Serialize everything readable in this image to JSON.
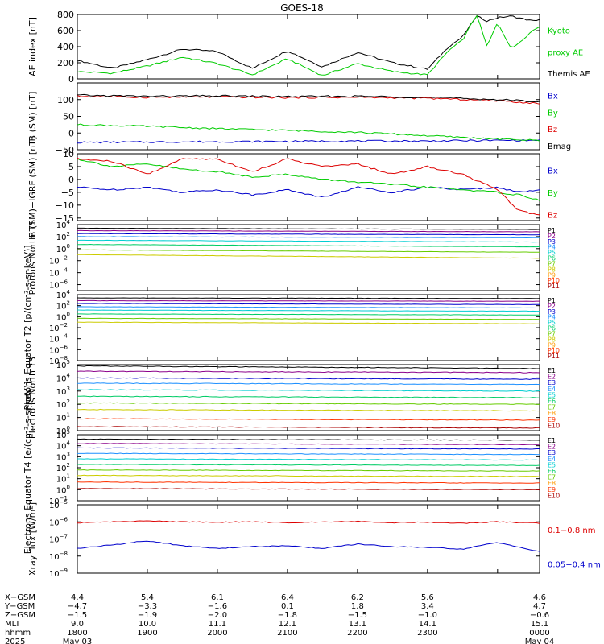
{
  "title": "GOES-18",
  "colors": {
    "black": "#000000",
    "green": "#00cc00",
    "red": "#dd0000",
    "blue": "#0000cc",
    "orange": "#ff8800",
    "channel_palette": [
      "#000000",
      "#8b008b",
      "#0000cc",
      "#1e90ff",
      "#00ced1",
      "#00cc66",
      "#66cc00",
      "#cccc00",
      "#ff9900",
      "#ff3300",
      "#aa0000"
    ]
  },
  "chart_data": [
    {
      "id": "ae",
      "type": "line",
      "ylabel": "AE index [nT]",
      "ylim": [
        0,
        800
      ],
      "log": false,
      "yticks": [
        0,
        200,
        400,
        600,
        800
      ],
      "tick_labels": [
        "0",
        "200",
        "400",
        "600",
        "800"
      ],
      "x_hours": [
        0,
        0.5,
        1,
        1.5,
        2,
        2.5,
        3,
        3.5,
        4,
        4.5,
        5,
        5.3,
        5.5,
        5.7,
        5.85,
        6.0,
        6.2,
        6.5,
        6.6
      ],
      "series": [
        {
          "name": "Themis AE",
          "label_color": "black",
          "color": "black",
          "values": [
            230,
            130,
            240,
            370,
            340,
            130,
            350,
            150,
            330,
            200,
            120,
            400,
            520,
            780,
            720,
            760,
            780,
            720,
            740
          ]
        },
        {
          "name": "Kyoto proxy AE",
          "label_color": "green",
          "color": "green",
          "values": [
            90,
            70,
            160,
            270,
            190,
            50,
            250,
            40,
            190,
            90,
            50,
            350,
            480,
            800,
            400,
            700,
            370,
            600,
            650
          ]
        }
      ],
      "legend": [
        {
          "text": "Kyoto",
          "color": "green"
        },
        {
          "text": "proxy AE",
          "color": "green"
        },
        {
          "text": "Themis AE",
          "color": "black"
        }
      ]
    },
    {
      "id": "bsm",
      "type": "line",
      "ylabel": "B (SM) [nT]",
      "ylim": [
        -50,
        150
      ],
      "log": false,
      "yticks": [
        -50,
        0,
        50,
        100
      ],
      "tick_labels": [
        "−50",
        "0",
        "50",
        "100"
      ],
      "x_hours": [
        0,
        1,
        2,
        3,
        4,
        5,
        6,
        6.6
      ],
      "series": [
        {
          "name": "Bx",
          "color": "blue",
          "values": [
            -28,
            -27,
            -26,
            -25,
            -24,
            -24,
            -22,
            -22
          ]
        },
        {
          "name": "By",
          "color": "green",
          "values": [
            25,
            20,
            13,
            8,
            2,
            -8,
            -18,
            -22
          ]
        },
        {
          "name": "Bz",
          "color": "red",
          "values": [
            110,
            107,
            108,
            106,
            107,
            104,
            97,
            88
          ]
        },
        {
          "name": "Bmag",
          "color": "black",
          "values": [
            113,
            110,
            111,
            109,
            110,
            107,
            100,
            94
          ]
        }
      ],
      "legend": [
        {
          "text": "Bx",
          "color": "blue"
        },
        {
          "text": "By",
          "color": "green"
        },
        {
          "text": "Bz",
          "color": "red"
        },
        {
          "text": "Bmag",
          "color": "black"
        }
      ]
    },
    {
      "id": "bdiff",
      "type": "line",
      "ylabel": "B (SM)−IGRF (SM) [nT]",
      "ylim": [
        -16,
        10
      ],
      "log": false,
      "yticks": [
        -15,
        -10,
        -5,
        0,
        5,
        10
      ],
      "tick_labels": [
        "−15",
        "−10",
        "−5",
        "0",
        "5",
        "10"
      ],
      "x_hours": [
        0,
        0.5,
        1,
        1.5,
        2,
        2.5,
        3,
        3.5,
        4,
        4.5,
        5,
        5.5,
        6,
        6.3,
        6.6
      ],
      "series": [
        {
          "name": "Bx",
          "color": "blue",
          "values": [
            -3,
            -4,
            -3,
            -5,
            -4,
            -6,
            -4,
            -7,
            -3,
            -5,
            -3,
            -4,
            -3,
            -5,
            -4
          ]
        },
        {
          "name": "By",
          "color": "green",
          "values": [
            8,
            5,
            6,
            4,
            3,
            1,
            2,
            0,
            -1,
            -2,
            -3,
            -4,
            -5,
            -6,
            -8
          ]
        },
        {
          "name": "Bz",
          "color": "red",
          "values": [
            8,
            7,
            2,
            8,
            8,
            3,
            8,
            5,
            6,
            2,
            5,
            2,
            -4,
            -12,
            -14
          ]
        }
      ],
      "legend": [
        {
          "text": "Bx",
          "color": "blue"
        },
        {
          "text": "By",
          "color": "green"
        },
        {
          "text": "Bz",
          "color": "red"
        }
      ]
    },
    {
      "id": "protT1",
      "type": "line",
      "ylabel": "Protons North T1",
      "ylim": [
        -7,
        4
      ],
      "log": true,
      "yticks": [
        -6,
        -4,
        -2,
        0,
        2,
        4
      ],
      "tick_exponents": [
        "−6",
        "−4",
        "−2",
        "0",
        "2",
        "4"
      ],
      "x_hours": [
        0,
        6.6
      ],
      "series": [
        {
          "name": "P1",
          "color_index": 0,
          "values": [
            3.4,
            3.2
          ]
        },
        {
          "name": "P2",
          "color_index": 1,
          "values": [
            3.0,
            2.8
          ]
        },
        {
          "name": "P3",
          "color_index": 2,
          "values": [
            2.5,
            2.3
          ]
        },
        {
          "name": "P4",
          "color_index": 3,
          "values": [
            2.0,
            1.8
          ]
        },
        {
          "name": "P5",
          "color_index": 4,
          "values": [
            1.4,
            1.1
          ]
        },
        {
          "name": "P6",
          "color_index": 5,
          "values": [
            0.7,
            0.3
          ]
        },
        {
          "name": "P7",
          "color_index": 6,
          "values": [
            -0.2,
            -0.6
          ]
        },
        {
          "name": "P8",
          "color_index": 7,
          "values": [
            -1.0,
            -1.6
          ]
        }
      ],
      "legend": [
        {
          "text": "P1",
          "color_index": 0
        },
        {
          "text": "P2",
          "color_index": 1
        },
        {
          "text": "P3",
          "color_index": 2
        },
        {
          "text": "P4",
          "color_index": 3
        },
        {
          "text": "P5",
          "color_index": 4
        },
        {
          "text": "P6",
          "color_index": 5
        },
        {
          "text": "P7",
          "color_index": 6
        },
        {
          "text": "P8",
          "color_index": 7
        },
        {
          "text": "P9",
          "color_index": 8
        },
        {
          "text": "P10",
          "color_index": 9
        },
        {
          "text": "P11",
          "color_index": 10
        }
      ]
    },
    {
      "id": "protT2",
      "type": "line",
      "ylabel": "Protons Equator T2 [p/(cm²-s-sr-keV)]",
      "ylim": [
        -8,
        4
      ],
      "log": true,
      "yticks": [
        -8,
        -6,
        -4,
        -2,
        0,
        2,
        4
      ],
      "tick_exponents": [
        "−8",
        "−6",
        "−4",
        "−2",
        "0",
        "2",
        "4"
      ],
      "x_hours": [
        0,
        6.6
      ],
      "series": [
        {
          "name": "P1",
          "color_index": 0,
          "values": [
            3.4,
            3.3
          ]
        },
        {
          "name": "P2",
          "color_index": 1,
          "values": [
            2.9,
            2.8
          ]
        },
        {
          "name": "P3",
          "color_index": 2,
          "values": [
            2.4,
            2.2
          ]
        },
        {
          "name": "P4",
          "color_index": 3,
          "values": [
            1.8,
            1.6
          ]
        },
        {
          "name": "P5",
          "color_index": 4,
          "values": [
            1.2,
            1.0
          ]
        },
        {
          "name": "P6",
          "color_index": 5,
          "values": [
            0.5,
            0.3
          ]
        },
        {
          "name": "P7",
          "color_index": 6,
          "values": [
            -0.3,
            -0.5
          ]
        },
        {
          "name": "P8",
          "color_index": 7,
          "values": [
            -1.0,
            -1.3
          ]
        }
      ],
      "legend": [
        {
          "text": "P1",
          "color_index": 0
        },
        {
          "text": "P2",
          "color_index": 1
        },
        {
          "text": "P3",
          "color_index": 2
        },
        {
          "text": "P4",
          "color_index": 3
        },
        {
          "text": "P5",
          "color_index": 4
        },
        {
          "text": "P6",
          "color_index": 5
        },
        {
          "text": "P7",
          "color_index": 6
        },
        {
          "text": "P8",
          "color_index": 7
        },
        {
          "text": "P9",
          "color_index": 8
        },
        {
          "text": "P10",
          "color_index": 9
        },
        {
          "text": "P11",
          "color_index": 10
        }
      ]
    },
    {
      "id": "elecT3",
      "type": "line",
      "ylabel": "Electrons North T3",
      "ylim": [
        0,
        5
      ],
      "log": true,
      "yticks": [
        0,
        1,
        2,
        3,
        4,
        5
      ],
      "tick_exponents": [
        "0",
        "1",
        "2",
        "3",
        "4",
        "5"
      ],
      "x_hours": [
        0,
        6.6
      ],
      "series": [
        {
          "name": "E1",
          "color_index": 0,
          "values": [
            4.9,
            4.7
          ]
        },
        {
          "name": "E2",
          "color_index": 1,
          "values": [
            4.5,
            4.4
          ]
        },
        {
          "name": "E3",
          "color_index": 2,
          "values": [
            4.0,
            3.9
          ]
        },
        {
          "name": "E4",
          "color_index": 3,
          "values": [
            3.6,
            3.5
          ]
        },
        {
          "name": "E5",
          "color_index": 4,
          "values": [
            3.1,
            3.0
          ]
        },
        {
          "name": "E6",
          "color_index": 5,
          "values": [
            2.6,
            2.5
          ]
        },
        {
          "name": "E7",
          "color_index": 6,
          "values": [
            2.1,
            2.0
          ]
        },
        {
          "name": "E8",
          "color_index": 7,
          "values": [
            1.6,
            1.5
          ]
        },
        {
          "name": "E9",
          "color_index": 9,
          "values": [
            0.9,
            0.8
          ]
        },
        {
          "name": "E10",
          "color_index": 10,
          "values": [
            0.3,
            0.2
          ]
        }
      ],
      "legend": [
        {
          "text": "E1",
          "color_index": 0
        },
        {
          "text": "E2",
          "color_index": 1
        },
        {
          "text": "E3",
          "color_index": 2
        },
        {
          "text": "E4",
          "color_index": 3
        },
        {
          "text": "E5",
          "color_index": 4
        },
        {
          "text": "E6",
          "color_index": 5
        },
        {
          "text": "E7",
          "color_index": 6
        },
        {
          "text": "E8",
          "color_index": 8
        },
        {
          "text": "E9",
          "color_index": 9
        },
        {
          "text": "E10",
          "color_index": 10
        }
      ]
    },
    {
      "id": "elecT4",
      "type": "line",
      "ylabel": "Electrons Equator T4 [e/(cm²-s-sr-keV)]",
      "ylim": [
        -1,
        5
      ],
      "log": true,
      "yticks": [
        -1,
        0,
        1,
        2,
        3,
        4,
        5
      ],
      "tick_exponents": [
        "−1",
        "0",
        "1",
        "2",
        "3",
        "4",
        "5"
      ],
      "x_hours": [
        0,
        6.6
      ],
      "series": [
        {
          "name": "E1",
          "color_index": 0,
          "values": [
            4.6,
            4.5
          ]
        },
        {
          "name": "E2",
          "color_index": 1,
          "values": [
            4.2,
            4.1
          ]
        },
        {
          "name": "E3",
          "color_index": 2,
          "values": [
            3.8,
            3.7
          ]
        },
        {
          "name": "E4",
          "color_index": 3,
          "values": [
            3.3,
            3.2
          ]
        },
        {
          "name": "E5",
          "color_index": 4,
          "values": [
            2.8,
            2.7
          ]
        },
        {
          "name": "E6",
          "color_index": 5,
          "values": [
            2.3,
            2.2
          ]
        },
        {
          "name": "E7",
          "color_index": 6,
          "values": [
            1.8,
            1.7
          ]
        },
        {
          "name": "E8",
          "color_index": 7,
          "values": [
            1.3,
            1.2
          ]
        },
        {
          "name": "E9",
          "color_index": 9,
          "values": [
            0.7,
            0.6
          ]
        },
        {
          "name": "E10",
          "color_index": 10,
          "values": [
            0.1,
            0.0
          ]
        }
      ],
      "legend": [
        {
          "text": "E1",
          "color_index": 0
        },
        {
          "text": "E2",
          "color_index": 1
        },
        {
          "text": "E3",
          "color_index": 2
        },
        {
          "text": "E4",
          "color_index": 3
        },
        {
          "text": "E5",
          "color_index": 4
        },
        {
          "text": "E6",
          "color_index": 5
        },
        {
          "text": "E7",
          "color_index": 6
        },
        {
          "text": "E8",
          "color_index": 8
        },
        {
          "text": "E9",
          "color_index": 9
        },
        {
          "text": "E10",
          "color_index": 10
        }
      ]
    },
    {
      "id": "xray",
      "type": "line",
      "ylabel": "Xray flux [W/m²]",
      "ylim": [
        -9,
        -5
      ],
      "log": true,
      "yticks": [
        -9,
        -8,
        -7,
        -6,
        -5
      ],
      "tick_exponents": [
        "−9",
        "−8",
        "−7",
        "−6",
        "−5"
      ],
      "x_hours": [
        0,
        0.5,
        1,
        1.5,
        2,
        2.5,
        3,
        3.5,
        4,
        4.5,
        5,
        5.5,
        6,
        6.6
      ],
      "series": [
        {
          "name": "0.1−0.8 nm",
          "color": "red",
          "values": [
            -6.05,
            -6.0,
            -5.95,
            -6.0,
            -6.02,
            -6.0,
            -6.05,
            -6.0,
            -5.97,
            -6.05,
            -6.02,
            -6.08,
            -6.0,
            -6.08
          ]
        },
        {
          "name": "0.05−0.4 nm",
          "color": "blue",
          "values": [
            -7.55,
            -7.35,
            -7.1,
            -7.4,
            -7.55,
            -7.45,
            -7.4,
            -7.55,
            -7.3,
            -7.45,
            -7.5,
            -7.6,
            -7.2,
            -7.75
          ]
        }
      ],
      "legend": [
        {
          "text": "0.1−0.8 nm",
          "color": "red"
        },
        {
          "text": "0.05−0.4 nm",
          "color": "blue"
        }
      ]
    }
  ],
  "x_axis": {
    "row_labels": [
      "X−GSM",
      "Y−GSM",
      "Z−GSM",
      "MLT",
      "hhmm",
      "2025"
    ],
    "tick_hours": [
      0,
      1,
      2,
      3,
      4,
      5,
      6.6
    ],
    "columns": [
      [
        "4.4",
        "−4.7",
        "−1.5",
        "9.0",
        "1800",
        "May 03"
      ],
      [
        "5.4",
        "−3.3",
        "−1.9",
        "10.0",
        "1900",
        ""
      ],
      [
        "6.1",
        "−1.6",
        "−2.0",
        "11.1",
        "2000",
        ""
      ],
      [
        "6.4",
        "0.1",
        "−1.8",
        "12.1",
        "2100",
        ""
      ],
      [
        "6.2",
        "1.8",
        "−1.5",
        "13.1",
        "2200",
        ""
      ],
      [
        "5.6",
        "3.4",
        "−1.0",
        "14.1",
        "2300",
        ""
      ],
      [
        "4.6",
        "4.7",
        "−0.6",
        "15.1",
        "0000",
        "May 04"
      ]
    ]
  }
}
